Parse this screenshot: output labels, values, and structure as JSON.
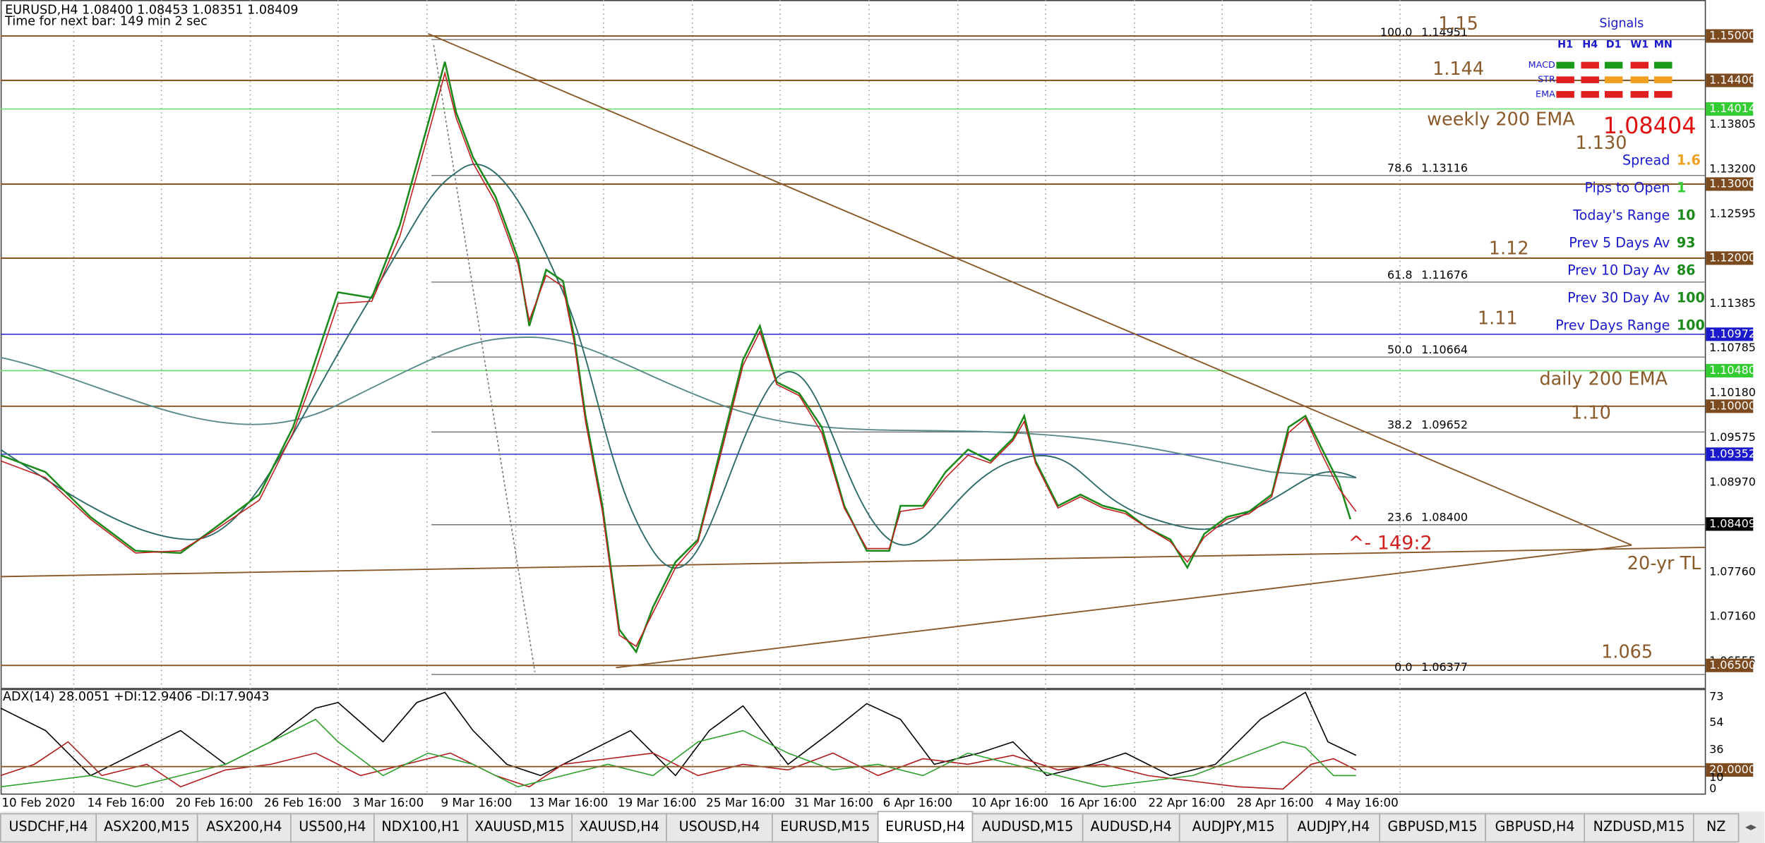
{
  "header": {
    "symbol_line": "EURUSD,H4  1.08400 1.08453 1.08351 1.08409",
    "timer": "Time for next bar: 149 min 2 sec"
  },
  "price_axis": [
    {
      "label": "1.15000",
      "style": "brown"
    },
    {
      "label": "1.14400",
      "style": "brown"
    },
    {
      "label": "1.14014",
      "style": "green"
    },
    {
      "label": "1.13805",
      "style": "plain"
    },
    {
      "label": "1.13200",
      "style": "plain"
    },
    {
      "label": "1.13000",
      "style": "brown"
    },
    {
      "label": "1.12595",
      "style": "plain"
    },
    {
      "label": "1.12000",
      "style": "brown"
    },
    {
      "label": "1.11385",
      "style": "plain"
    },
    {
      "label": "1.10972",
      "style": "blue"
    },
    {
      "label": "1.10785",
      "style": "plain"
    },
    {
      "label": "1.10480",
      "style": "green"
    },
    {
      "label": "1.10180",
      "style": "plain"
    },
    {
      "label": "1.10000",
      "style": "brown"
    },
    {
      "label": "1.09575",
      "style": "plain"
    },
    {
      "label": "1.09352",
      "style": "blue"
    },
    {
      "label": "1.08970",
      "style": "plain"
    },
    {
      "label": "1.08409",
      "style": "black"
    },
    {
      "label": "1.07760",
      "style": "plain"
    },
    {
      "label": "1.07160",
      "style": "plain"
    },
    {
      "label": "1.06555",
      "style": "plain"
    },
    {
      "label": "1.06500",
      "style": "brown"
    }
  ],
  "fib_levels": [
    {
      "level": "100.0",
      "price": "1.14951"
    },
    {
      "level": "78.6",
      "price": "1.13116"
    },
    {
      "level": "61.8",
      "price": "1.11676"
    },
    {
      "level": "50.0",
      "price": "1.10664"
    },
    {
      "level": "38.2",
      "price": "1.09652"
    },
    {
      "level": "23.6",
      "price": "1.08400"
    },
    {
      "level": "0.0",
      "price": "1.06377"
    }
  ],
  "annotations": [
    "1.15",
    "1.144",
    "weekly 200 EMA",
    "1.130",
    "1.12",
    "1.11",
    "daily 200 EMA",
    "1.10",
    "^- 149:2",
    "20-yr TL",
    "1.065"
  ],
  "current_price": "1.08404",
  "signals": {
    "title": "Signals",
    "columns": [
      "H1",
      "H4",
      "D1",
      "W1",
      "MN"
    ],
    "rows": [
      {
        "name": "MACD",
        "colors": [
          "#1a9a1a",
          "#e02020",
          "#1a9a1a",
          "#e02020",
          "#1a9a1a"
        ]
      },
      {
        "name": "STR",
        "colors": [
          "#e02020",
          "#e02020",
          "#f0a020",
          "#f0a020",
          "#f0a020"
        ]
      },
      {
        "name": "EMA",
        "colors": [
          "#e02020",
          "#e02020",
          "#e02020",
          "#e02020",
          "#e02020"
        ]
      }
    ]
  },
  "stats": [
    {
      "label": "Spread",
      "value": "1.6"
    },
    {
      "label": "Pips to Open",
      "value": "1"
    },
    {
      "label": "Today's Range",
      "value": "10"
    },
    {
      "label": "Prev 5 Days Av",
      "value": "93"
    },
    {
      "label": "Prev 10 Day Av",
      "value": "86"
    },
    {
      "label": "Prev 30 Day Av",
      "value": "100"
    },
    {
      "label": "Prev Days Range",
      "value": "100"
    }
  ],
  "adx": {
    "label": "ADX(14) 28.0051 +DI:12.9406 -DI:17.9043",
    "axis": [
      "73",
      "54",
      "36",
      "20.0000",
      "10",
      "0"
    ]
  },
  "time_axis": [
    "10 Feb 2020",
    "14 Feb 16:00",
    "20 Feb 16:00",
    "26 Feb 16:00",
    "3 Mar 16:00",
    "9 Mar 16:00",
    "13 Mar 16:00",
    "19 Mar 16:00",
    "25 Mar 16:00",
    "31 Mar 16:00",
    "6 Apr 16:00",
    "10 Apr 16:00",
    "16 Apr 16:00",
    "22 Apr 16:00",
    "28 Apr 16:00",
    "4 May 16:00"
  ],
  "tabs": [
    "USDCHF,H4",
    "ASX200,M15",
    "ASX200,H4",
    "US500,H4",
    "NDX100,H1",
    "XAUUSD,M15",
    "XAUUSD,H4",
    "USOUSD,H4",
    "EURUSD,M15",
    "EURUSD,H4",
    "AUDUSD,M15",
    "AUDUSD,H4",
    "AUDJPY,M15",
    "AUDJPY,H4",
    "GBPUSD,M15",
    "GBPUSD,H4",
    "NZDUSD,M15",
    "NZ"
  ],
  "active_tab": 9
}
